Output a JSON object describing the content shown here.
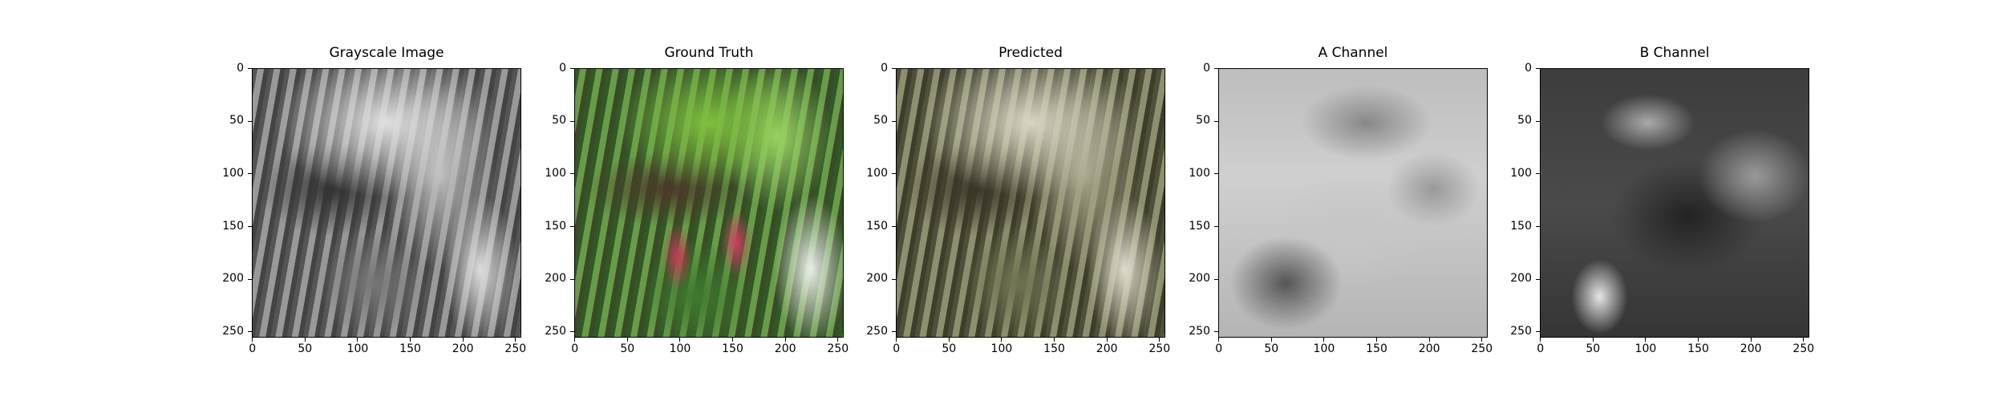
{
  "figure": {
    "panels": [
      {
        "title": "Grayscale Image",
        "image": "grayscale greenhouse plants with hanging red flowers"
      },
      {
        "title": "Ground Truth",
        "image": "color greenhouse plants with green foliage and red hanging flowers"
      },
      {
        "title": "Predicted",
        "image": "muted olive-tinted colorization of greenhouse plants"
      },
      {
        "title": "A Channel",
        "image": "light gray blurred a-channel map"
      },
      {
        "title": "B Channel",
        "image": "dark gray blurred b-channel map"
      }
    ],
    "x_ticks": [
      "0",
      "50",
      "100",
      "150",
      "200",
      "250"
    ],
    "y_ticks": [
      "0",
      "50",
      "100",
      "150",
      "200",
      "250"
    ]
  }
}
